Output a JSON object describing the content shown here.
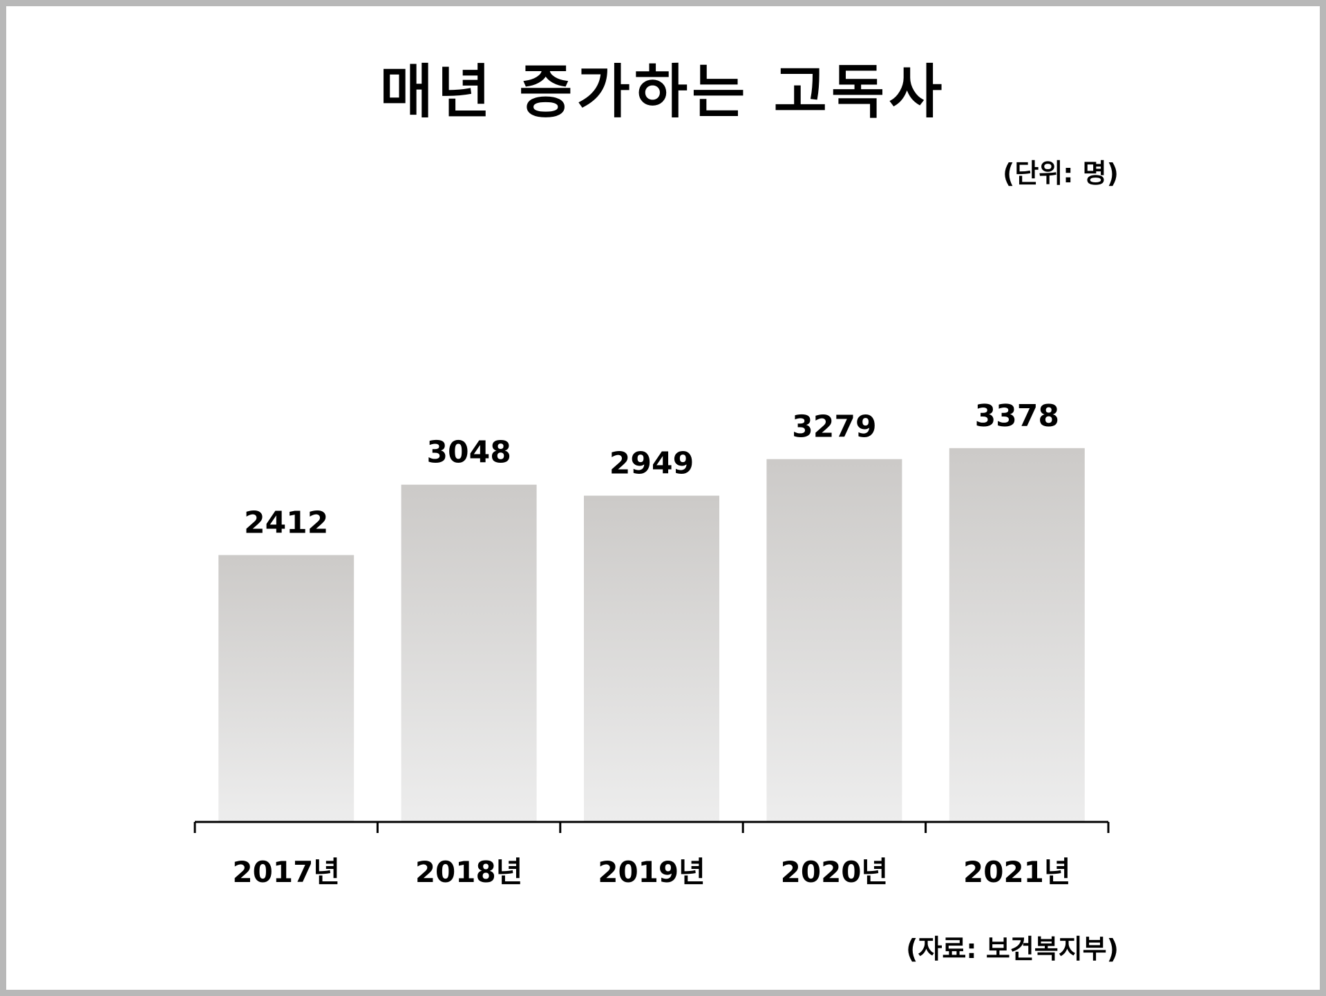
{
  "title": "매년 증가하는 고독사",
  "unit_note": "(단위: 명)",
  "source_note": "(자료: 보건복지부)",
  "colors": {
    "bar_top": "#cccac8",
    "bar_bottom": "#ededed",
    "axis": "#000000",
    "border": "#b8b8b8"
  },
  "chart_data": {
    "type": "bar",
    "title": "매년 증가하는 고독사",
    "categories": [
      "2017년",
      "2018년",
      "2019년",
      "2020년",
      "2021년"
    ],
    "values": [
      2412,
      3048,
      2949,
      3279,
      3378
    ],
    "data_labels": [
      "2412",
      "3048",
      "2949",
      "3279",
      "3378"
    ],
    "xlabel": "",
    "ylabel": "",
    "grid": false,
    "legend": "none"
  }
}
